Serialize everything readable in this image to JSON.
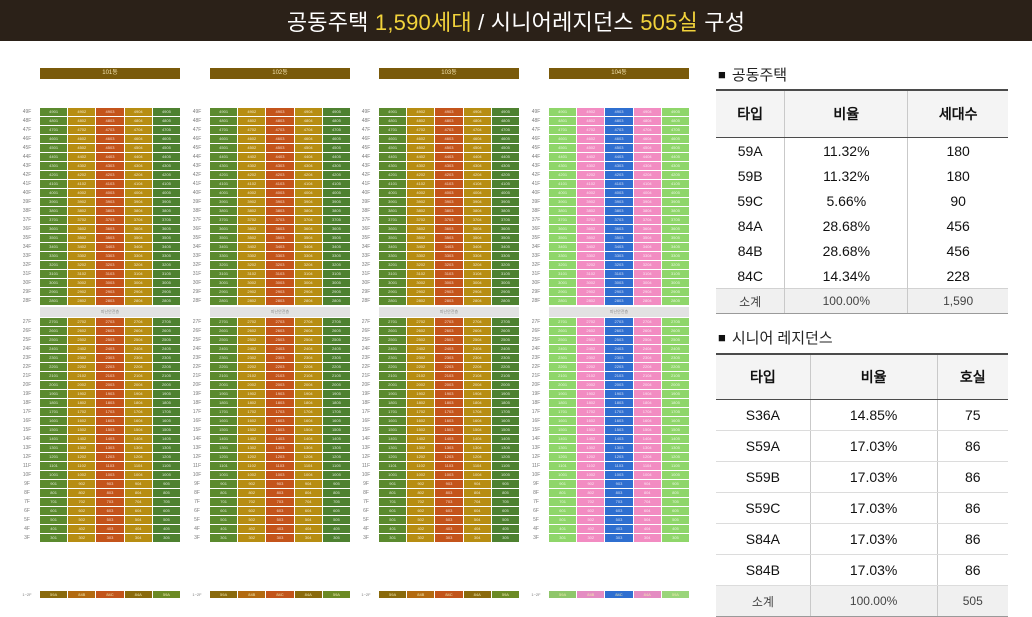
{
  "header": {
    "title_pre": "공동주택 ",
    "title_hl1": "1,590세대",
    "title_mid": " / 시니어레지던스 ",
    "title_hl2": "505실",
    "title_post": " 구성"
  },
  "colors": {
    "header_bg": "#2b2118",
    "highlight": "#f2d33b",
    "type_59a": "#5b8a2e",
    "type_84a": "#b78d12",
    "type_84b": "#c4541b",
    "type_59b": "#4e8130",
    "senior_green": "#8fd66a",
    "senior_pink": "#f28cc2",
    "senior_blue": "#2f6fd0"
  },
  "schematic": {
    "buildings": [
      {
        "label": "101동",
        "scheme": "housing_a"
      },
      {
        "label": "102동",
        "scheme": "housing_b"
      },
      {
        "label": "103동",
        "scheme": "housing_a"
      },
      {
        "label": "104동",
        "scheme": "senior"
      }
    ],
    "floors": [
      "49F",
      "48F",
      "47F",
      "46F",
      "45F",
      "44F",
      "43F",
      "42F",
      "41F",
      "40F",
      "39F",
      "38F",
      "37F",
      "36F",
      "35F",
      "34F",
      "33F",
      "32F",
      "31F",
      "30F",
      "29F",
      "28F",
      "27F",
      "26F",
      "25F",
      "24F",
      "23F",
      "22F",
      "21F",
      "20F",
      "19F",
      "18F",
      "17F",
      "16F",
      "15F",
      "14F",
      "13F",
      "12F",
      "11F",
      "10F",
      "9F",
      "8F",
      "7F",
      "6F",
      "5F",
      "4F",
      "3F"
    ],
    "separator_label": "피난안전층",
    "separator_after_floor": "28F",
    "base_floor_label": "1~2F",
    "base_units": [
      "59A",
      "84B",
      "84C",
      "84A",
      "59A"
    ]
  },
  "housing": {
    "section_title": "공동주택",
    "headers": [
      "타입",
      "비율",
      "세대수"
    ],
    "rows": [
      [
        "59A",
        "11.32%",
        "180"
      ],
      [
        "59B",
        "11.32%",
        "180"
      ],
      [
        "59C",
        "5.66%",
        "90"
      ],
      [
        "84A",
        "28.68%",
        "456"
      ],
      [
        "84B",
        "28.68%",
        "456"
      ],
      [
        "84C",
        "14.34%",
        "228"
      ]
    ],
    "subtotal": [
      "소계",
      "100.00%",
      "1,590"
    ]
  },
  "senior": {
    "section_title": "시니어 레지던스",
    "headers": [
      "타입",
      "비율",
      "호실"
    ],
    "rows": [
      [
        "S36A",
        "14.85%",
        "75"
      ],
      [
        "S59A",
        "17.03%",
        "86"
      ],
      [
        "S59B",
        "17.03%",
        "86"
      ],
      [
        "S59C",
        "17.03%",
        "86"
      ],
      [
        "S84A",
        "17.03%",
        "86"
      ],
      [
        "S84B",
        "17.03%",
        "86"
      ]
    ],
    "subtotal": [
      "소계",
      "100.00%",
      "505"
    ]
  }
}
